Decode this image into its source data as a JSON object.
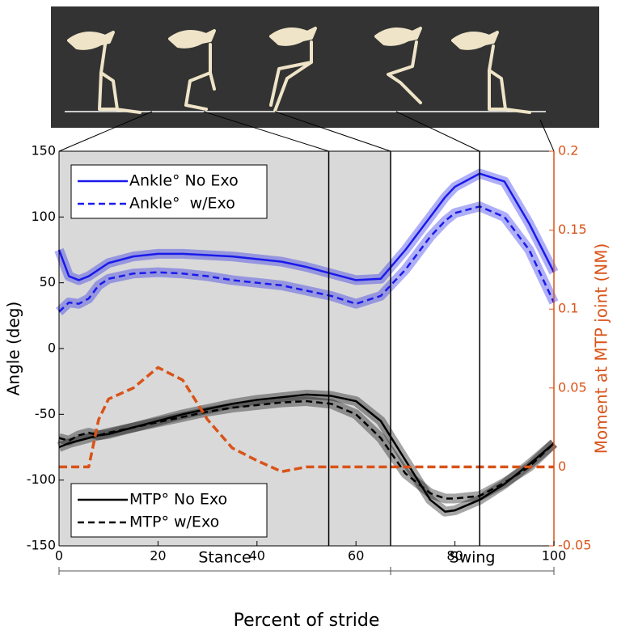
{
  "chart_data": {
    "type": "line",
    "ylabel": "Angle (deg)",
    "y2label": "Moment at MTP joint (NM)",
    "xlabel": "Percent of stride",
    "xlim": [
      0,
      100
    ],
    "xticks": [
      0,
      20,
      40,
      60,
      80,
      100
    ],
    "ylim": [
      -150,
      150
    ],
    "yticks": [
      -150,
      -100,
      -50,
      0,
      50,
      100,
      150
    ],
    "y2lim": [
      -0.05,
      0.2
    ],
    "y2ticks": [
      -0.05,
      0,
      0.05,
      0.1,
      0.15,
      0.2
    ],
    "y2color": "#d95319",
    "x": [
      0,
      2,
      4,
      6,
      8,
      10,
      15,
      20,
      25,
      30,
      35,
      40,
      45,
      50,
      55,
      60,
      65,
      70,
      75,
      78,
      80,
      85,
      90,
      95,
      100
    ],
    "series": [
      {
        "name": "Ankle° No Exo",
        "color": "#1a1aeb",
        "dash": false,
        "values": [
          75,
          55,
          52,
          55,
          60,
          65,
          70,
          72,
          72,
          71,
          70,
          68,
          66,
          62,
          57,
          52,
          53,
          75,
          100,
          115,
          123,
          133,
          127,
          95,
          58
        ]
      },
      {
        "name": "Ankle°  w/Exo",
        "color": "#1a1aeb",
        "dash": true,
        "values": [
          28,
          35,
          34,
          38,
          48,
          53,
          57,
          58,
          57,
          55,
          52,
          50,
          48,
          44,
          40,
          34,
          40,
          60,
          85,
          97,
          103,
          108,
          100,
          75,
          35
        ]
      },
      {
        "name": "MTP° No Exo",
        "color": "#000000",
        "dash": false,
        "values": [
          -75,
          -72,
          -70,
          -68,
          -66,
          -65,
          -60,
          -55,
          -50,
          -46,
          -42,
          -39,
          -37,
          -35,
          -36,
          -40,
          -55,
          -85,
          -115,
          -124,
          -123,
          -115,
          -103,
          -88,
          -72
        ]
      },
      {
        "name": "MTP° w/Exo",
        "color": "#000000",
        "dash": true,
        "values": [
          -68,
          -70,
          -66,
          -64,
          -66,
          -64,
          -60,
          -56,
          -52,
          -48,
          -45,
          -43,
          -41,
          -40,
          -42,
          -50,
          -68,
          -95,
          -110,
          -114,
          -114,
          -112,
          -102,
          -90,
          -72
        ]
      },
      {
        "color": "#d95319",
        "dash": true,
        "axis": "y2",
        "values": [
          0,
          0,
          0,
          0,
          0.03,
          0.043,
          0.05,
          0.063,
          0.055,
          0.03,
          0.012,
          0.004,
          -0.003,
          0,
          0,
          0,
          0,
          0,
          0,
          0,
          0,
          0,
          0,
          0,
          0
        ]
      }
    ],
    "vlines": [
      54.5,
      67,
      85
    ],
    "phases": [
      {
        "label": "Stance",
        "start": 0,
        "end": 67
      },
      {
        "label": "Swing",
        "start": 67,
        "end": 100
      }
    ]
  }
}
